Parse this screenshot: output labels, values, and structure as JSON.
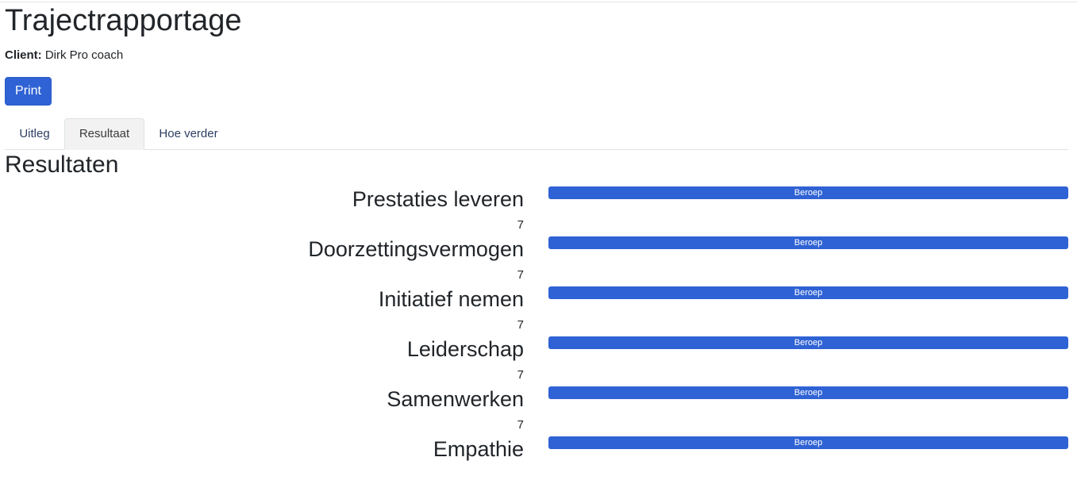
{
  "page": {
    "title": "Trajectrapportage",
    "client_label": "Client:",
    "client_name": "Dirk Pro coach",
    "print_label": "Print"
  },
  "tabs": [
    {
      "label": "Uitleg",
      "active": false
    },
    {
      "label": "Resultaat",
      "active": true
    },
    {
      "label": "Hoe verder",
      "active": false
    }
  ],
  "results": {
    "title": "Resultaten",
    "rows": [
      {
        "label": "Prestaties leveren",
        "bar_label": "Beroep",
        "score": "7"
      },
      {
        "label": "Doorzettingsvermogen",
        "bar_label": "Beroep",
        "score": "7"
      },
      {
        "label": "Initiatief nemen",
        "bar_label": "Beroep",
        "score": "7"
      },
      {
        "label": "Leiderschap",
        "bar_label": "Beroep",
        "score": "7"
      },
      {
        "label": "Samenwerken",
        "bar_label": "Beroep",
        "score": "7"
      },
      {
        "label": "Empathie",
        "bar_label": "Beroep",
        "score": ""
      }
    ]
  },
  "colors": {
    "accent": "#2f62d4",
    "text": "#212529",
    "tab_text": "#2c3e63"
  }
}
